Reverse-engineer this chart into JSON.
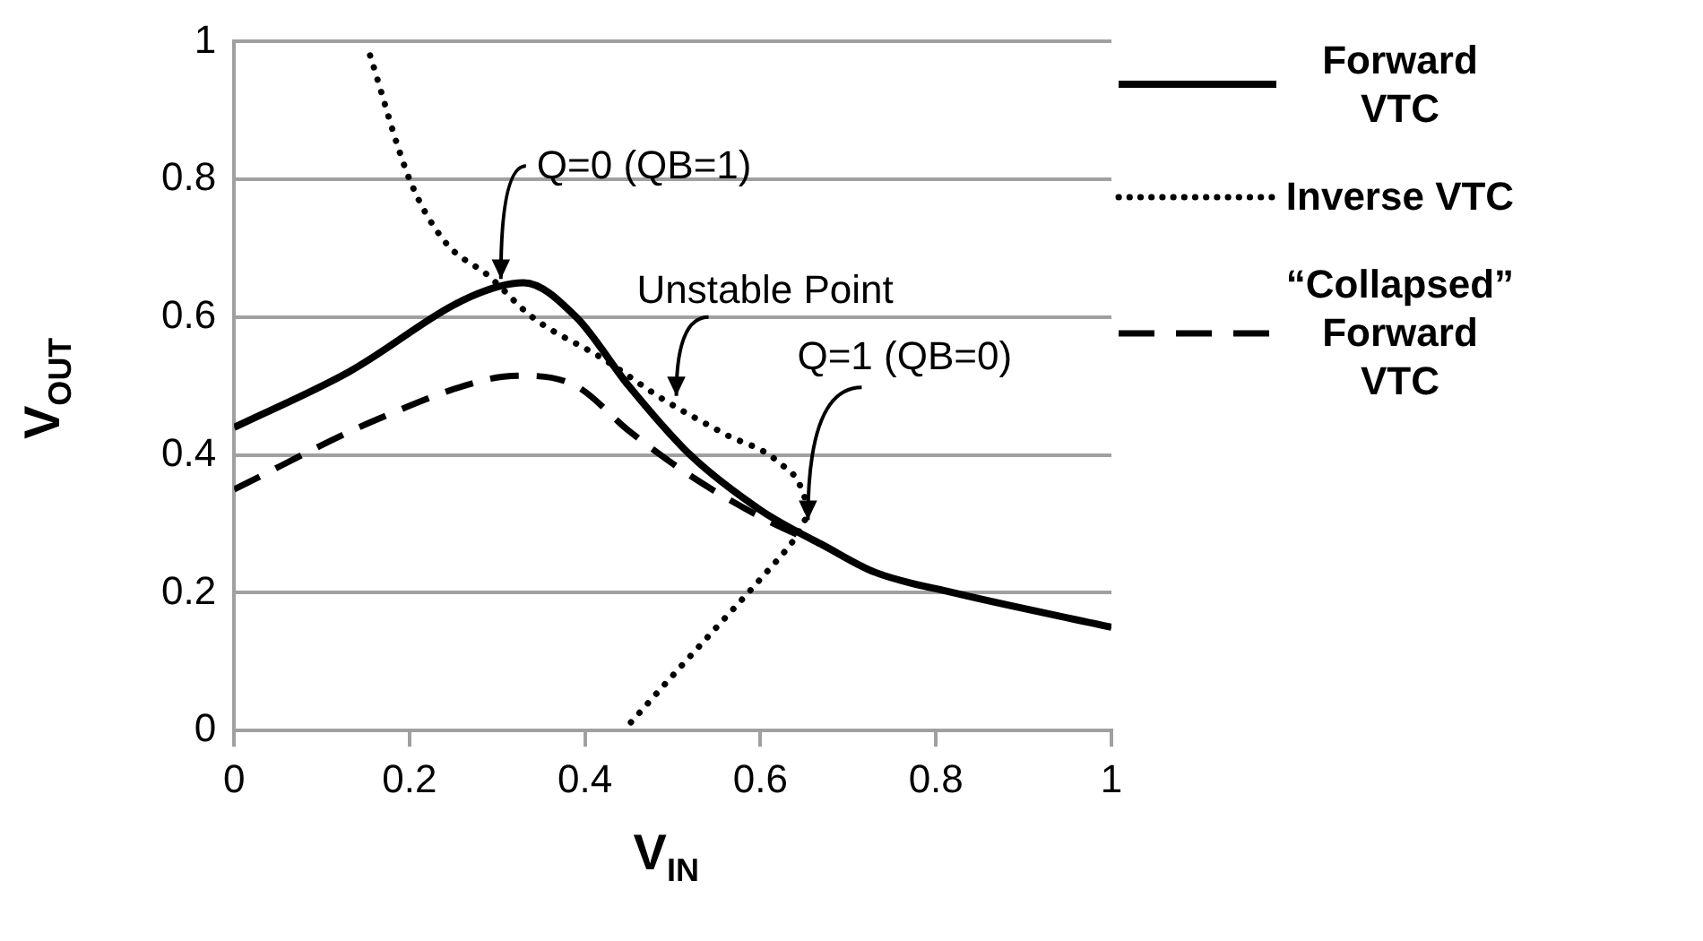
{
  "chart_data": {
    "type": "line",
    "xlabel": "V$_{IN}$",
    "ylabel": "V$_{OUT}$",
    "xlim": [
      0,
      1
    ],
    "ylim": [
      0,
      1
    ],
    "xticks": [
      0,
      0.2,
      0.4,
      0.6,
      0.8,
      1
    ],
    "yticks": [
      0,
      0.2,
      0.4,
      0.6,
      0.8,
      1
    ],
    "grid": "y",
    "legend": "right",
    "marker": "none",
    "series": [
      {
        "name": "Forward VTC",
        "color": "#000000",
        "line_style": "solid",
        "x": [
          0,
          0.13,
          0.27,
          0.33,
          0.39,
          0.45,
          0.52,
          0.6,
          0.64,
          0.67,
          0.73,
          0.82,
          1
        ],
        "values": [
          0.44,
          0.52,
          0.63,
          0.65,
          0.6,
          0.5,
          0.4,
          0.32,
          0.29,
          0.27,
          0.23,
          0.2,
          0.15
        ]
      },
      {
        "name": "Inverse VTC",
        "color": "#000000",
        "line_style": "dotted",
        "x": [
          0.155,
          0.2,
          0.24,
          0.29,
          0.34,
          0.42,
          0.49,
          0.56,
          0.62,
          0.65,
          0.655,
          0.64,
          0.6,
          0.55,
          0.5,
          0.444
        ],
        "values": [
          0.98,
          0.8,
          0.71,
          0.66,
          0.6,
          0.54,
          0.48,
          0.43,
          0.39,
          0.34,
          0.31,
          0.28,
          0.22,
          0.15,
          0.08,
          0
        ]
      },
      {
        "name": "“Collapsed” Forward VTC",
        "color": "#000000",
        "line_style": "dashed",
        "x": [
          0,
          0.16,
          0.29,
          0.33,
          0.39,
          0.45,
          0.52,
          0.6,
          0.65,
          0.66
        ],
        "values": [
          0.35,
          0.45,
          0.51,
          0.515,
          0.5,
          0.435,
          0.37,
          0.31,
          0.28,
          0.275
        ]
      }
    ],
    "annotations": [
      {
        "text": "Q=0 (QB=1)",
        "x": 0.3,
        "y": 0.64
      },
      {
        "text": "Unstable Point",
        "x": 0.5,
        "y": 0.47
      },
      {
        "text": "Q=1 (QB=0)",
        "x": 0.65,
        "y": 0.29
      }
    ]
  }
}
